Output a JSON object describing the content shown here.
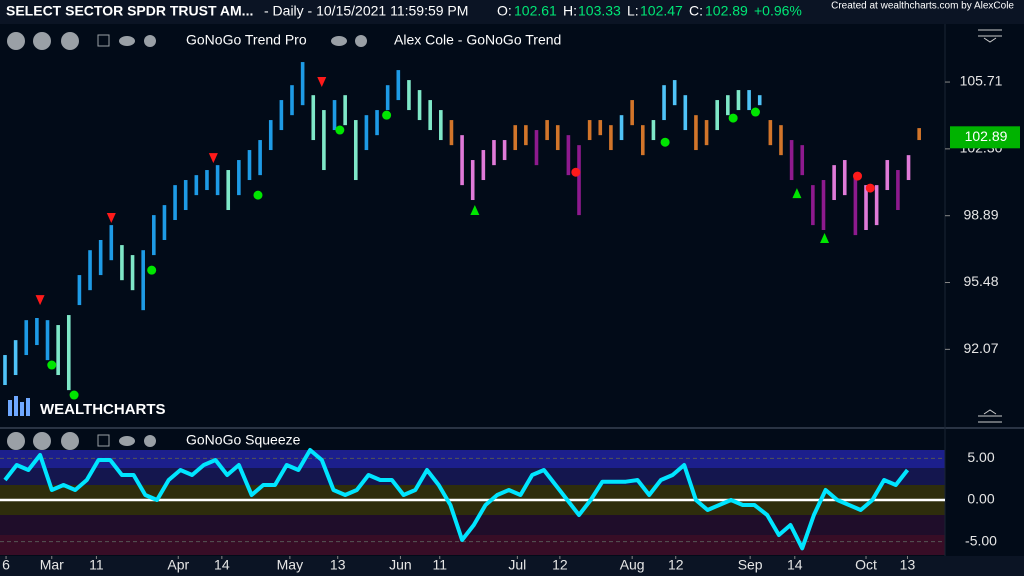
{
  "header": {
    "symbol": "SELECT SECTOR SPDR TRUST AM...",
    "interval": "- Daily - 10/15/2021 11:59:59 PM",
    "open_label": "O:",
    "open": 102.61,
    "high_label": "H:",
    "high": 103.33,
    "low_label": "L:",
    "low": 102.47,
    "close_label": "C:",
    "close": 102.89,
    "change": "+0.96%",
    "credit": "Created at wealthcharts.com by AlexCole",
    "indicator_1": "GoNoGo Trend Pro",
    "indicator_2": "Alex Cole - GoNoGo Trend",
    "indicator_3": "GoNoGo Squeeze",
    "logo": "WEALTHCHARTS"
  },
  "chart_data": [
    {
      "type": "range-bar",
      "high": [
        91.78,
        92.54,
        93.56,
        93.67,
        93.56,
        93.31,
        93.82,
        95.86,
        97.13,
        97.65,
        98.41,
        97.39,
        96.88,
        97.13,
        98.92,
        99.43,
        100.45,
        100.71,
        100.96,
        101.22,
        101.47,
        101.22,
        101.73,
        102.24,
        102.75,
        103.77,
        104.79,
        105.55,
        106.73,
        105.04,
        104.28,
        104.79,
        105.04,
        103.77,
        104.02,
        104.28,
        105.55,
        106.32,
        105.81,
        105.3,
        104.79,
        104.28,
        103.77,
        103.0,
        101.73,
        102.24,
        102.75,
        102.75,
        103.51,
        103.51,
        103.26,
        103.77,
        103.51,
        103.0,
        102.49,
        103.77,
        103.77,
        103.51,
        104.02,
        104.79,
        103.51,
        103.77,
        105.55,
        105.81,
        105.04,
        104.02,
        103.77,
        104.79,
        105.04,
        105.3,
        105.3,
        105.04,
        103.77,
        103.51,
        102.75,
        102.49,
        100.45,
        100.71,
        101.47,
        101.73,
        100.96,
        100.45,
        100.45,
        101.73,
        101.22,
        101.98,
        103.36
      ],
      "low": [
        90.25,
        90.76,
        91.78,
        92.29,
        91.52,
        90.76,
        89.99,
        94.33,
        95.09,
        95.86,
        96.62,
        95.6,
        95.09,
        94.07,
        96.88,
        97.65,
        98.67,
        99.18,
        99.94,
        100.2,
        99.94,
        99.18,
        99.94,
        100.71,
        100.96,
        102.24,
        103.26,
        104.02,
        104.53,
        102.75,
        101.22,
        103.26,
        103.51,
        100.71,
        102.24,
        103.0,
        104.28,
        104.79,
        104.28,
        103.77,
        103.26,
        102.75,
        102.49,
        100.45,
        99.69,
        100.71,
        101.47,
        101.73,
        102.24,
        102.49,
        101.47,
        102.75,
        102.24,
        100.96,
        98.92,
        102.75,
        103.0,
        102.24,
        102.75,
        103.51,
        101.98,
        102.75,
        103.77,
        104.53,
        103.26,
        102.24,
        102.49,
        103.26,
        104.02,
        104.28,
        104.28,
        104.53,
        102.49,
        101.98,
        100.71,
        100.96,
        98.41,
        98.16,
        99.69,
        99.94,
        97.9,
        98.16,
        98.41,
        100.2,
        99.18,
        100.71,
        102.75
      ],
      "colors": [
        "#4fc3f7",
        "#4fc3f7",
        "#1e9be6",
        "#1e9be6",
        "#1e9be6",
        "#7fe8c8",
        "#7fe8c8",
        "#1e9be6",
        "#1e9be6",
        "#1e9be6",
        "#1e9be6",
        "#7fe8c8",
        "#7fe8c8",
        "#1e9be6",
        "#1e9be6",
        "#1e9be6",
        "#1e9be6",
        "#1e9be6",
        "#1e9be6",
        "#1e9be6",
        "#1e9be6",
        "#7fe8c8",
        "#1e9be6",
        "#1e9be6",
        "#1e9be6",
        "#1e9be6",
        "#1e9be6",
        "#1e9be6",
        "#1e9be6",
        "#7fe8c8",
        "#7fe8c8",
        "#1e9be6",
        "#7fe8c8",
        "#7fe8c8",
        "#1e9be6",
        "#1e9be6",
        "#1e9be6",
        "#1e9be6",
        "#7fe8c8",
        "#7fe8c8",
        "#7fe8c8",
        "#7fe8c8",
        "#d2752a",
        "#e07ad8",
        "#e07ad8",
        "#e07ad8",
        "#e07ad8",
        "#e07ad8",
        "#d2752a",
        "#d2752a",
        "#8e1a8e",
        "#d2752a",
        "#d2752a",
        "#8e1a8e",
        "#8e1a8e",
        "#d2752a",
        "#d2752a",
        "#d2752a",
        "#4fc3f7",
        "#d2752a",
        "#d2752a",
        "#7fe8c8",
        "#4fc3f7",
        "#4fc3f7",
        "#4fc3f7",
        "#d2752a",
        "#d2752a",
        "#7fe8c8",
        "#7fe8c8",
        "#7fe8c8",
        "#4fc3f7",
        "#4fc3f7",
        "#d2752a",
        "#d2752a",
        "#8e1a8e",
        "#8e1a8e",
        "#8e1a8e",
        "#8e1a8e",
        "#e07ad8",
        "#e07ad8",
        "#8e1a8e",
        "#e07ad8",
        "#e07ad8",
        "#e07ad8",
        "#8e1a8e",
        "#e07ad8",
        "#d2752a"
      ],
      "signals": [
        {
          "shape": "circle",
          "color": "#00e600",
          "x": [
            4.4,
            6.5,
            13.8,
            23.8,
            31.5,
            35.9,
            62.1,
            68.5,
            70.6
          ],
          "values": [
            91.27,
            89.74,
            96.11,
            99.94,
            103.26,
            104.02,
            102.64,
            103.87,
            104.18
          ]
        },
        {
          "shape": "circle",
          "color": "#ff1a1a",
          "x": [
            53.7,
            80.2,
            81.4
          ],
          "values": [
            101.11,
            100.91,
            100.3
          ]
        },
        {
          "shape": "triangle-down",
          "color": "#ff1a1a",
          "x": [
            3.3,
            10.0,
            19.6,
            29.8
          ],
          "values": [
            94.58,
            98.77,
            101.83,
            105.71
          ]
        },
        {
          "shape": "triangle-up",
          "color": "#00e600",
          "x": [
            44.2,
            74.5,
            77.1
          ],
          "values": [
            99.18,
            100.04,
            97.75
          ]
        }
      ],
      "last_price": 102.89,
      "last_price_color": "#00b300",
      "xlim": [
        -0.47,
        88.43
      ],
      "ylim": [
        88.21,
        107.09
      ],
      "yticks": [
        92.07,
        95.48,
        98.89,
        {
          "value": 102.3,
          "label": "102.30"
        },
        105.71
      ],
      "xticks": [
        {
          "value": 0.1,
          "label": "6"
        },
        {
          "value": 4.4,
          "label": "Mar"
        },
        {
          "value": 8.6,
          "label": "11"
        },
        {
          "value": 16.3,
          "label": "Apr"
        },
        {
          "value": 20.4,
          "label": "14"
        },
        {
          "value": 26.8,
          "label": "May"
        },
        {
          "value": 31.3,
          "label": "13"
        },
        {
          "value": 37.2,
          "label": "Jun"
        },
        {
          "value": 40.9,
          "label": "11"
        },
        {
          "value": 48.2,
          "label": "Jul"
        },
        {
          "value": 52.2,
          "label": "12"
        },
        {
          "value": 59.0,
          "label": "Aug"
        },
        {
          "value": 63.1,
          "label": "12"
        },
        {
          "value": 70.1,
          "label": "Sep"
        },
        {
          "value": 74.3,
          "label": "14"
        },
        {
          "value": 81.0,
          "label": "Oct"
        },
        {
          "value": 84.9,
          "label": "13"
        }
      ]
    },
    {
      "type": "line",
      "color": "#00e5ff",
      "x": [
        0,
        1.1,
        2.2,
        3.3,
        4.4,
        5.5,
        6.6,
        7.7,
        8.8,
        9.9,
        11.0,
        12.1,
        13.2,
        14.3,
        15.4,
        16.5,
        17.6,
        18.7,
        19.8,
        20.9,
        22.0,
        23.2,
        24.3,
        25.4,
        26.5,
        27.6,
        28.7,
        29.8,
        30.9,
        32.0,
        33.1,
        34.2,
        35.3,
        36.4,
        37.5,
        38.6,
        39.7,
        40.8,
        41.9,
        43.0,
        44.1,
        45.2,
        46.3,
        47.4,
        48.5,
        49.6,
        50.7,
        51.8,
        52.9,
        54.0,
        55.1,
        56.2,
        57.3,
        58.4,
        59.5,
        60.6,
        61.7,
        62.8,
        63.9,
        65.0,
        66.1,
        67.2,
        68.3,
        69.4,
        70.5,
        71.7,
        72.8,
        73.9,
        75.0,
        76.1,
        77.2,
        78.3,
        79.4,
        80.5,
        81.6,
        82.7,
        83.8,
        84.9
      ],
      "values": [
        2.4,
        4.2,
        3.6,
        5.4,
        1.2,
        1.8,
        1.2,
        2.4,
        4.8,
        4.8,
        3.0,
        3.0,
        0.6,
        0.0,
        2.4,
        3.6,
        3.0,
        4.2,
        4.8,
        3.0,
        4.2,
        0.6,
        1.8,
        1.8,
        4.2,
        3.6,
        6.0,
        4.8,
        1.2,
        0.6,
        1.2,
        3.0,
        2.4,
        2.4,
        0.6,
        1.2,
        3.6,
        1.8,
        -0.6,
        -4.8,
        -3.0,
        -0.6,
        0.6,
        1.2,
        0.6,
        3.0,
        3.6,
        1.8,
        0.0,
        -1.8,
        0.0,
        2.2,
        2.2,
        2.2,
        2.4,
        0.6,
        2.4,
        3.0,
        4.2,
        0.0,
        -1.2,
        -0.6,
        0.0,
        -0.6,
        -0.6,
        -1.8,
        -4.2,
        -3.0,
        -5.8,
        -1.8,
        1.2,
        0.0,
        -0.6,
        -1.2,
        0.0,
        2.4,
        1.8,
        3.6
      ],
      "xlim": [
        -0.47,
        88.43
      ],
      "ylim": [
        -7.2,
        6.0
      ],
      "yticks": [
        {
          "value": 5,
          "label": "5.00"
        },
        {
          "value": 0,
          "label": "0.00"
        },
        {
          "value": -5,
          "label": "-5.00"
        }
      ]
    }
  ]
}
